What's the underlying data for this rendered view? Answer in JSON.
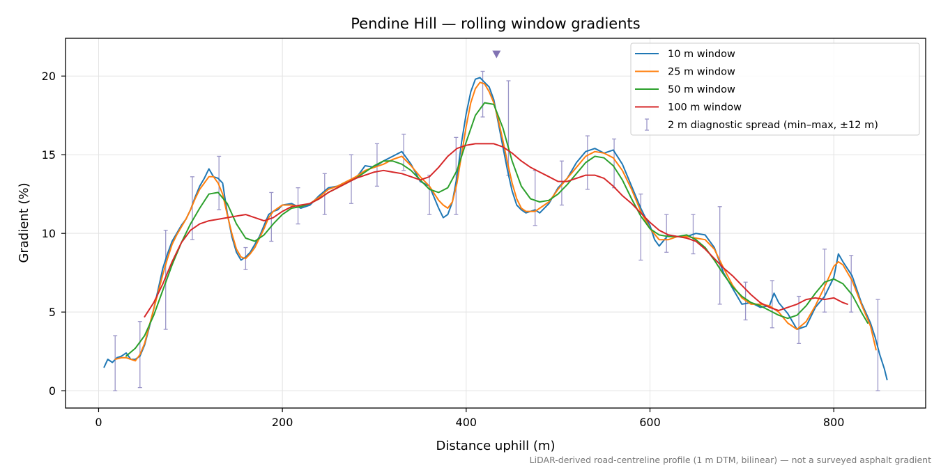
{
  "chart_data": {
    "type": "line",
    "title": "Pendine Hill — rolling window gradients",
    "xlabel": "Distance uphill (m)",
    "ylabel": "Gradient (%)",
    "xlim": [
      -36,
      900
    ],
    "ylim": [
      -1.1,
      22.4
    ],
    "xticks": [
      0,
      200,
      400,
      600,
      800
    ],
    "yticks": [
      0,
      5,
      10,
      15,
      20
    ],
    "grid": true,
    "legend_position": "top-right",
    "footnote": "LiDAR-derived road-centreline profile (1 m DTM, bilinear) — not a surveyed asphalt gradient",
    "peak_marker": {
      "x": 433,
      "y": 21.4,
      "color": "#8172b3"
    },
    "series": [
      {
        "name": "10 m window",
        "color": "#1f77b4",
        "x": [
          6,
          10,
          15,
          20,
          25,
          30,
          35,
          40,
          45,
          50,
          55,
          60,
          65,
          70,
          75,
          80,
          85,
          90,
          95,
          100,
          105,
          110,
          115,
          120,
          125,
          130,
          135,
          140,
          145,
          150,
          155,
          160,
          165,
          170,
          175,
          180,
          185,
          190,
          195,
          200,
          210,
          220,
          230,
          240,
          250,
          260,
          270,
          280,
          290,
          300,
          310,
          320,
          330,
          340,
          350,
          360,
          370,
          375,
          380,
          385,
          390,
          395,
          400,
          405,
          410,
          415,
          420,
          425,
          430,
          435,
          440,
          445,
          450,
          455,
          460,
          465,
          470,
          475,
          480,
          490,
          500,
          510,
          520,
          530,
          540,
          550,
          560,
          570,
          580,
          590,
          595,
          600,
          605,
          610,
          620,
          630,
          640,
          650,
          660,
          670,
          680,
          690,
          700,
          710,
          720,
          730,
          735,
          740,
          750,
          760,
          770,
          780,
          790,
          800,
          805,
          810,
          820,
          830,
          840,
          845,
          850,
          855,
          858
        ],
        "y": [
          1.5,
          2.0,
          1.8,
          2.1,
          2.2,
          2.4,
          2.0,
          2.0,
          2.2,
          2.9,
          4.0,
          5.2,
          6.5,
          7.8,
          8.7,
          9.5,
          10.0,
          10.5,
          10.9,
          11.5,
          12.3,
          13.0,
          13.5,
          14.1,
          13.6,
          13.5,
          13.2,
          11.3,
          9.8,
          8.8,
          8.3,
          8.5,
          8.8,
          9.3,
          9.8,
          10.5,
          11.2,
          11.4,
          11.5,
          11.8,
          11.9,
          11.6,
          11.8,
          12.4,
          12.9,
          13.0,
          13.3,
          13.5,
          14.3,
          14.2,
          14.6,
          14.9,
          15.2,
          14.4,
          13.3,
          13.0,
          11.6,
          11.0,
          11.2,
          12.0,
          13.6,
          15.8,
          17.6,
          19.0,
          19.8,
          19.9,
          19.6,
          19.3,
          18.5,
          17.0,
          15.5,
          14.0,
          12.7,
          11.8,
          11.5,
          11.3,
          11.4,
          11.5,
          11.3,
          11.9,
          12.9,
          13.5,
          14.5,
          15.2,
          15.4,
          15.1,
          15.3,
          14.4,
          13.0,
          11.6,
          11.0,
          10.5,
          9.6,
          9.2,
          9.9,
          9.8,
          9.8,
          10.0,
          9.9,
          9.1,
          7.5,
          6.5,
          5.5,
          5.6,
          5.3,
          5.4,
          6.2,
          5.6,
          4.9,
          3.9,
          4.1,
          5.3,
          6.0,
          7.2,
          8.7,
          8.2,
          7.3,
          5.6,
          4.3,
          3.4,
          2.3,
          1.4,
          0.7
        ]
      },
      {
        "name": "25 m window",
        "color": "#ff7f0e",
        "x": [
          18,
          25,
          30,
          35,
          40,
          45,
          50,
          55,
          60,
          65,
          70,
          75,
          80,
          85,
          90,
          95,
          100,
          105,
          110,
          115,
          120,
          125,
          130,
          135,
          140,
          145,
          150,
          155,
          160,
          165,
          170,
          175,
          180,
          185,
          190,
          195,
          200,
          210,
          220,
          230,
          240,
          250,
          260,
          270,
          280,
          290,
          300,
          310,
          320,
          330,
          340,
          350,
          360,
          370,
          375,
          380,
          385,
          390,
          395,
          400,
          405,
          410,
          415,
          420,
          425,
          430,
          435,
          440,
          445,
          450,
          455,
          460,
          465,
          470,
          475,
          480,
          490,
          500,
          510,
          520,
          530,
          540,
          550,
          560,
          570,
          580,
          590,
          600,
          610,
          620,
          630,
          640,
          650,
          660,
          670,
          680,
          690,
          700,
          710,
          720,
          730,
          740,
          750,
          760,
          770,
          780,
          790,
          800,
          805,
          810,
          820,
          830,
          840,
          846
        ],
        "y": [
          2.0,
          2.1,
          2.1,
          2.0,
          1.9,
          2.3,
          3.0,
          4.1,
          5.2,
          6.3,
          7.4,
          8.4,
          9.3,
          9.9,
          10.4,
          10.9,
          11.5,
          12.2,
          12.8,
          13.2,
          13.6,
          13.6,
          13.2,
          12.5,
          11.2,
          10.0,
          9.0,
          8.5,
          8.4,
          8.7,
          9.1,
          9.7,
          10.3,
          11.0,
          11.4,
          11.6,
          11.8,
          11.8,
          11.7,
          11.9,
          12.3,
          12.8,
          13.0,
          13.3,
          13.6,
          14.0,
          14.2,
          14.4,
          14.7,
          14.9,
          14.3,
          13.6,
          13.0,
          12.1,
          11.8,
          11.6,
          12.0,
          13.2,
          15.0,
          16.8,
          18.3,
          19.2,
          19.6,
          19.5,
          19.0,
          18.3,
          17.2,
          15.9,
          14.5,
          13.2,
          12.2,
          11.6,
          11.4,
          11.4,
          11.4,
          11.6,
          12.0,
          12.8,
          13.5,
          14.2,
          14.9,
          15.2,
          15.1,
          14.8,
          14.0,
          12.8,
          11.4,
          10.3,
          9.6,
          9.6,
          9.8,
          9.8,
          9.7,
          9.6,
          9.0,
          7.8,
          6.7,
          5.9,
          5.5,
          5.5,
          5.4,
          5.0,
          4.3,
          3.9,
          4.4,
          5.4,
          6.6,
          7.9,
          8.2,
          8.0,
          7.0,
          5.5,
          4.1,
          2.6
        ]
      },
      {
        "name": "50 m window",
        "color": "#2ca02c",
        "x": [
          30,
          40,
          50,
          60,
          70,
          80,
          90,
          100,
          110,
          120,
          130,
          140,
          150,
          160,
          170,
          180,
          190,
          200,
          210,
          220,
          230,
          240,
          250,
          260,
          270,
          280,
          290,
          300,
          310,
          320,
          330,
          340,
          350,
          360,
          370,
          380,
          390,
          400,
          410,
          420,
          430,
          440,
          450,
          460,
          470,
          480,
          490,
          500,
          510,
          520,
          530,
          540,
          550,
          560,
          570,
          580,
          590,
          600,
          610,
          620,
          630,
          640,
          650,
          660,
          670,
          680,
          690,
          700,
          710,
          720,
          730,
          740,
          750,
          760,
          770,
          780,
          790,
          800,
          810,
          820,
          830,
          837
        ],
        "y": [
          2.2,
          2.7,
          3.5,
          4.8,
          6.4,
          8.0,
          9.4,
          10.6,
          11.6,
          12.5,
          12.6,
          11.9,
          10.6,
          9.7,
          9.5,
          9.9,
          10.6,
          11.2,
          11.6,
          11.7,
          11.9,
          12.2,
          12.6,
          12.9,
          13.2,
          13.5,
          13.9,
          14.3,
          14.6,
          14.6,
          14.4,
          14.0,
          13.4,
          12.8,
          12.6,
          12.9,
          14.0,
          15.8,
          17.5,
          18.3,
          18.2,
          16.7,
          14.6,
          13.0,
          12.2,
          12.0,
          12.1,
          12.5,
          13.1,
          13.8,
          14.5,
          14.9,
          14.8,
          14.3,
          13.4,
          12.2,
          11.1,
          10.3,
          9.9,
          9.8,
          9.8,
          9.9,
          9.6,
          9.1,
          8.3,
          7.4,
          6.6,
          6.0,
          5.6,
          5.4,
          5.1,
          4.8,
          4.6,
          4.8,
          5.4,
          6.2,
          6.9,
          7.1,
          6.8,
          6.1,
          5.0,
          4.3
        ]
      },
      {
        "name": "100 m window",
        "color": "#d62728",
        "x": [
          50,
          60,
          70,
          80,
          90,
          100,
          110,
          120,
          130,
          140,
          150,
          160,
          170,
          180,
          190,
          200,
          210,
          220,
          230,
          240,
          250,
          260,
          270,
          280,
          290,
          300,
          310,
          320,
          330,
          340,
          350,
          360,
          370,
          380,
          390,
          400,
          410,
          420,
          430,
          440,
          450,
          460,
          470,
          480,
          490,
          500,
          510,
          520,
          530,
          540,
          550,
          560,
          570,
          580,
          590,
          600,
          610,
          620,
          630,
          640,
          650,
          660,
          670,
          680,
          690,
          700,
          710,
          720,
          730,
          740,
          750,
          760,
          770,
          780,
          790,
          800,
          810,
          815
        ],
        "y": [
          4.7,
          5.6,
          6.8,
          8.2,
          9.4,
          10.2,
          10.6,
          10.8,
          10.9,
          11.0,
          11.1,
          11.2,
          11.0,
          10.8,
          11.0,
          11.4,
          11.7,
          11.8,
          11.9,
          12.2,
          12.6,
          12.9,
          13.2,
          13.5,
          13.7,
          13.9,
          14.0,
          13.9,
          13.8,
          13.6,
          13.4,
          13.6,
          14.2,
          14.9,
          15.4,
          15.6,
          15.7,
          15.7,
          15.7,
          15.5,
          15.1,
          14.6,
          14.2,
          13.9,
          13.6,
          13.3,
          13.3,
          13.5,
          13.7,
          13.7,
          13.5,
          13.0,
          12.4,
          11.9,
          11.3,
          10.7,
          10.2,
          9.9,
          9.8,
          9.7,
          9.5,
          9.0,
          8.4,
          7.8,
          7.3,
          6.7,
          6.1,
          5.6,
          5.3,
          5.1,
          5.3,
          5.5,
          5.8,
          5.9,
          5.8,
          5.9,
          5.6,
          5.5
        ]
      }
    ],
    "errorbars": {
      "name": "2 m diagnostic spread (min–max, ±12 m)",
      "color": "#9b96c8",
      "points": [
        {
          "x": 18,
          "low": 0.0,
          "high": 3.5
        },
        {
          "x": 45,
          "low": 0.2,
          "high": 4.4
        },
        {
          "x": 73,
          "low": 3.9,
          "high": 10.2
        },
        {
          "x": 102,
          "low": 9.6,
          "high": 13.6
        },
        {
          "x": 131,
          "low": 11.5,
          "high": 14.9
        },
        {
          "x": 160,
          "low": 7.7,
          "high": 9.1
        },
        {
          "x": 188,
          "low": 9.5,
          "high": 12.6
        },
        {
          "x": 217,
          "low": 10.6,
          "high": 12.9
        },
        {
          "x": 246,
          "low": 11.2,
          "high": 13.8
        },
        {
          "x": 275,
          "low": 11.9,
          "high": 15.0
        },
        {
          "x": 303,
          "low": 13.0,
          "high": 15.7
        },
        {
          "x": 332,
          "low": 14.0,
          "high": 16.3
        },
        {
          "x": 360,
          "low": 11.2,
          "high": 13.7
        },
        {
          "x": 389,
          "low": 11.2,
          "high": 16.1
        },
        {
          "x": 418,
          "low": 17.4,
          "high": 20.3
        },
        {
          "x": 446,
          "low": 13.7,
          "high": 19.7
        },
        {
          "x": 475,
          "low": 10.5,
          "high": 14.0
        },
        {
          "x": 504,
          "low": 11.8,
          "high": 14.6
        },
        {
          "x": 532,
          "low": 12.8,
          "high": 16.2
        },
        {
          "x": 561,
          "low": 12.9,
          "high": 16.0
        },
        {
          "x": 590,
          "low": 8.3,
          "high": 12.5
        },
        {
          "x": 618,
          "low": 8.8,
          "high": 11.2
        },
        {
          "x": 647,
          "low": 8.7,
          "high": 11.2
        },
        {
          "x": 676,
          "low": 5.5,
          "high": 11.7
        },
        {
          "x": 704,
          "low": 4.5,
          "high": 6.9
        },
        {
          "x": 733,
          "low": 4.0,
          "high": 7.0
        },
        {
          "x": 762,
          "low": 3.0,
          "high": 6.0
        },
        {
          "x": 790,
          "low": 5.0,
          "high": 9.0
        },
        {
          "x": 819,
          "low": 5.0,
          "high": 8.6
        },
        {
          "x": 848,
          "low": 0.0,
          "high": 5.8
        }
      ]
    }
  }
}
